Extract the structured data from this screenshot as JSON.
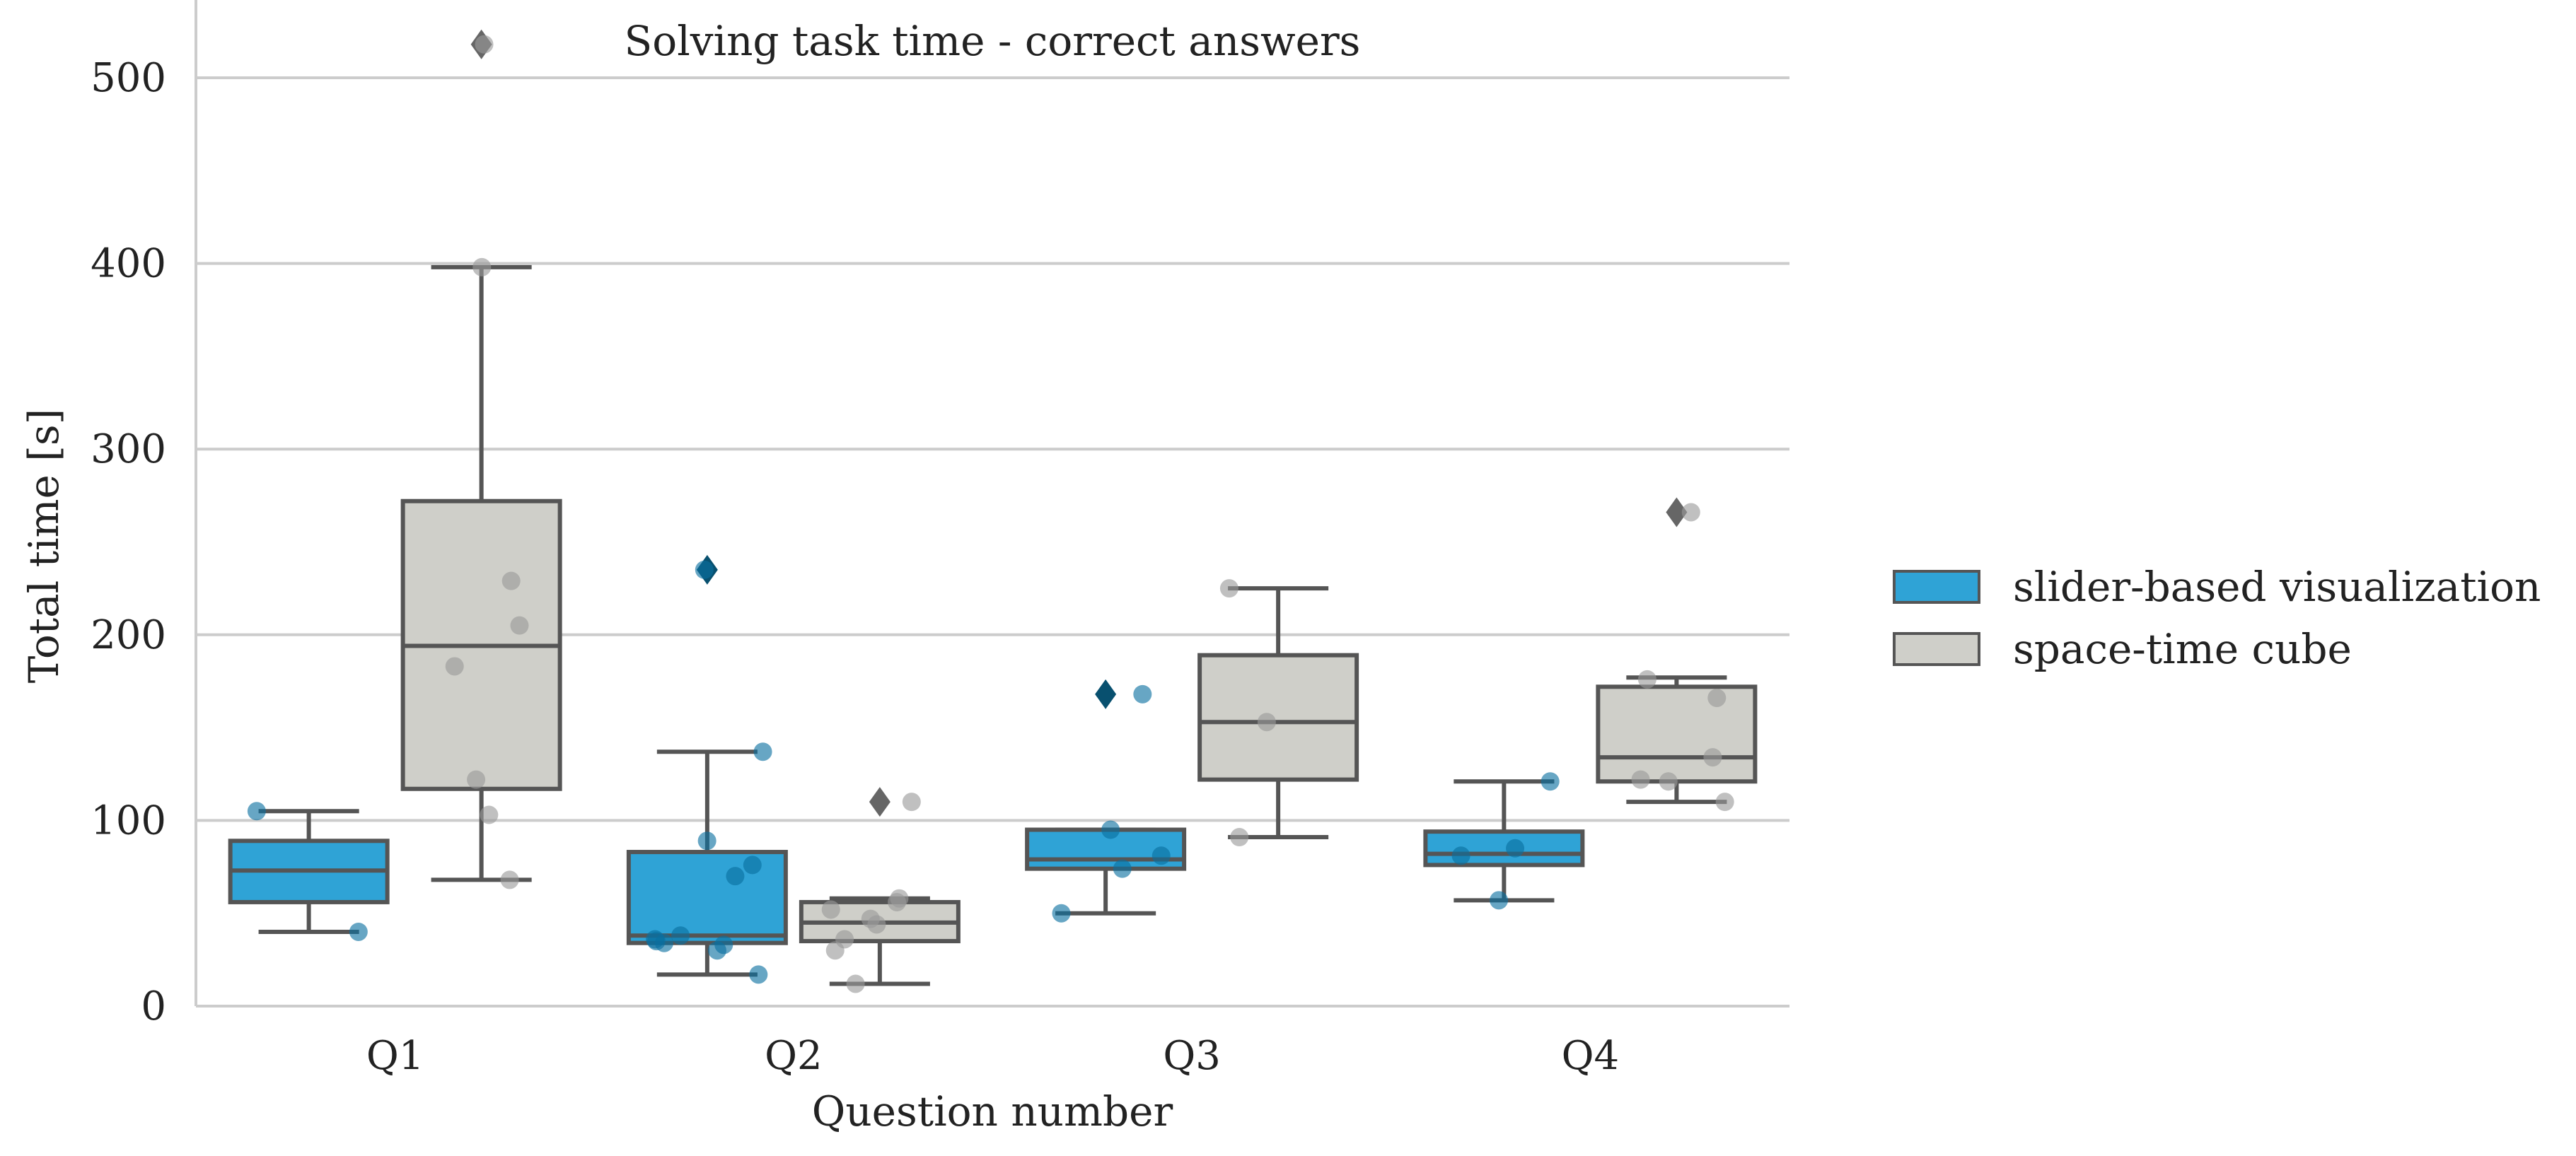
{
  "chart_data": {
    "type": "boxplot",
    "title": "Solving task time - correct answers",
    "xlabel": "Question number",
    "ylabel": "Total time [s]",
    "ylim": [
      0,
      550
    ],
    "yticks": [
      0,
      100,
      200,
      300,
      400,
      500
    ],
    "grid": "horizontal",
    "legend_position": "right",
    "categories": [
      "Q1",
      "Q2",
      "Q3",
      "Q4"
    ],
    "series": [
      {
        "name": "slider-based visualization",
        "color": "#2fa3d6",
        "boxes": [
          {
            "category": "Q1",
            "whisker_low": 40,
            "q1": 56,
            "median": 73,
            "q3": 89,
            "whisker_high": 105,
            "outliers": [],
            "points": [
              40,
              105
            ]
          },
          {
            "category": "Q2",
            "whisker_low": 17,
            "q1": 34,
            "median": 38,
            "q3": 83,
            "whisker_high": 137,
            "outliers": [
              235
            ],
            "points": [
              17,
              30,
              33,
              34,
              35,
              36,
              38,
              70,
              76,
              89,
              137,
              235
            ]
          },
          {
            "category": "Q3",
            "whisker_low": 50,
            "q1": 74,
            "median": 79,
            "q3": 95,
            "whisker_high": 95,
            "outliers": [
              168
            ],
            "points": [
              50,
              74,
              81,
              95,
              168
            ]
          },
          {
            "category": "Q4",
            "whisker_low": 57,
            "q1": 76,
            "median": 82,
            "q3": 94,
            "whisker_high": 121,
            "outliers": [],
            "points": [
              57,
              81,
              85,
              121
            ]
          }
        ]
      },
      {
        "name": "space-time cube",
        "color": "#cfcfc9",
        "boxes": [
          {
            "category": "Q1",
            "whisker_low": 68,
            "q1": 117,
            "median": 194,
            "q3": 272,
            "whisker_high": 398,
            "outliers": [
              518
            ],
            "points": [
              68,
              103,
              122,
              183,
              205,
              229,
              398,
              518
            ]
          },
          {
            "category": "Q2",
            "whisker_low": 12,
            "q1": 35,
            "median": 45,
            "q3": 56,
            "whisker_high": 58,
            "outliers": [
              110
            ],
            "points": [
              12,
              30,
              36,
              44,
              47,
              52,
              56,
              58,
              110
            ]
          },
          {
            "category": "Q3",
            "whisker_low": 91,
            "q1": 122,
            "median": 153,
            "q3": 189,
            "whisker_high": 225,
            "outliers": [],
            "points": [
              91,
              153,
              225
            ]
          },
          {
            "category": "Q4",
            "whisker_low": 110,
            "q1": 121,
            "median": 134,
            "q3": 172,
            "whisker_high": 177,
            "outliers": [
              266
            ],
            "points": [
              110,
              121,
              122,
              134,
              166,
              176,
              266
            ]
          }
        ]
      }
    ]
  }
}
